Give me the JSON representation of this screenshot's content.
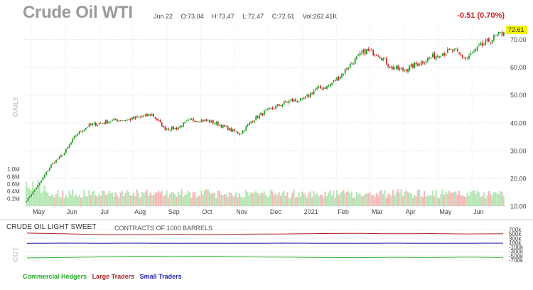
{
  "header": {
    "title": "Crude Oil WTI",
    "date": "Jun 22",
    "open": "O:73.04",
    "high": "H:73.47",
    "low": "L:72.47",
    "close": "C:72.61",
    "volume": "Vol:262.41K",
    "change": "-0.51 (0.70%)"
  },
  "price_panel": {
    "side_label": "DAILY",
    "last_price": "72.61",
    "y_ticks": [
      "70.00",
      "60.00",
      "50.00",
      "40.00",
      "30.00",
      "20.00",
      "10.00"
    ],
    "volume_ticks": [
      "1.0M",
      "0.8M",
      "0.6M",
      "0.4M",
      "0.2M"
    ],
    "x_labels": [
      "May",
      "Jun",
      "Jul",
      "Aug",
      "Sep",
      "Oct",
      "Nov",
      "Dec",
      "2021",
      "Feb",
      "Mar",
      "Apr",
      "May",
      "Jun"
    ]
  },
  "cot_panel": {
    "title": "CRUDE OIL LIGHT SWEET",
    "units": "CONTRACTS OF 1000 BARRELS",
    "side_label": "COT",
    "y_ticks": [
      "700k",
      "500k",
      "300k",
      "100k",
      "-100k",
      "-300k",
      "-500k",
      "-700k"
    ],
    "legend": [
      {
        "name": "Commercial Hedgers",
        "color": "#22aa22"
      },
      {
        "name": "Large Traders",
        "color": "#aa2222"
      },
      {
        "name": "Small Traders",
        "color": "#2222aa"
      }
    ]
  },
  "colors": {
    "up": "#1a9a1a",
    "down": "#cc2222",
    "vol_up": "#b4e6b4",
    "vol_down": "#f5b9b9",
    "last_price_bg": "#f5f500"
  },
  "chart_data": [
    {
      "type": "candlestick",
      "title": "Crude Oil WTI",
      "ylim": [
        10,
        75
      ],
      "x": [
        "May",
        "Jun",
        "Jul",
        "Aug",
        "Sep",
        "Oct",
        "Nov",
        "Dec",
        "2021",
        "Feb",
        "Mar",
        "Apr",
        "May",
        "Jun"
      ],
      "close_path": [
        12,
        18,
        25,
        29,
        36,
        39,
        40,
        41,
        41,
        42,
        43,
        38,
        38,
        41,
        41,
        40,
        38,
        36,
        41,
        44,
        46,
        48,
        48,
        52,
        53,
        57,
        62,
        66,
        65,
        60,
        59,
        61,
        63,
        65,
        66,
        63,
        67,
        70,
        72.61
      ]
    },
    {
      "type": "bar",
      "title": "Volume",
      "ylim": [
        0,
        1000000
      ],
      "typical_volume": 400000
    },
    {
      "type": "line",
      "title": "CRUDE OIL LIGHT SWEET",
      "ylim": [
        -700000,
        700000
      ],
      "series": [
        {
          "name": "Large Traders",
          "values": [
            540000,
            510000,
            470000,
            460000,
            480000,
            470000,
            490000,
            500000,
            520000,
            530000,
            510000,
            520000,
            500000,
            510000
          ]
        },
        {
          "name": "Small Traders",
          "values": [
            70000,
            80000,
            75000,
            80000,
            70000,
            75000,
            70000,
            80000,
            75000,
            70000,
            80000,
            70000,
            75000,
            80000
          ]
        },
        {
          "name": "Commercial Hedgers",
          "values": [
            -600000,
            -580000,
            -550000,
            -530000,
            -540000,
            -530000,
            -550000,
            -560000,
            -580000,
            -590000,
            -570000,
            -580000,
            -560000,
            -580000
          ]
        }
      ]
    }
  ]
}
